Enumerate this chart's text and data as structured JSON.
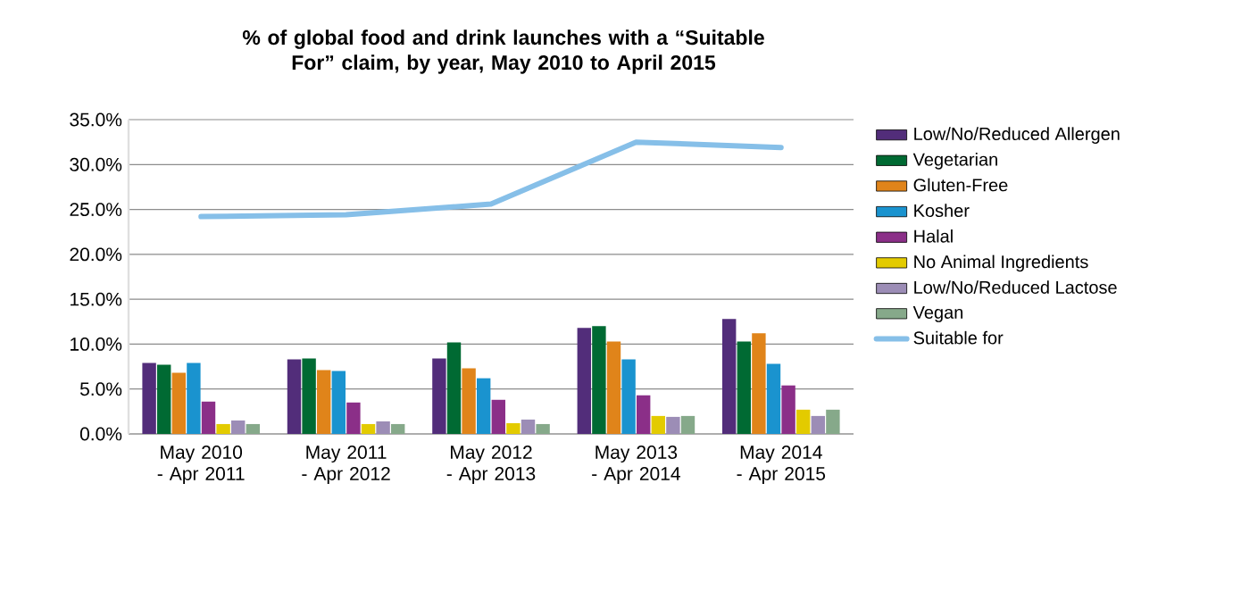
{
  "chart_data": {
    "type": "bar",
    "title": "% of global food and drink launches with a “Suitable For” claim, by year, May 2010 to April 2015",
    "categories": [
      "May 2010 - Apr 2011",
      "May 2011 - Apr 2012",
      "May 2012 - Apr 2013",
      "May 2013 - Apr 2014",
      "May 2014 - Apr 2015"
    ],
    "series": [
      {
        "name": "Low/No/Reduced Allergen",
        "color": "#522d7a",
        "values": [
          7.9,
          8.3,
          8.4,
          11.8,
          12.8
        ]
      },
      {
        "name": "Vegetarian",
        "color": "#006a33",
        "values": [
          7.7,
          8.4,
          10.2,
          12.0,
          10.3
        ]
      },
      {
        "name": "Gluten-Free",
        "color": "#e0841a",
        "values": [
          6.8,
          7.1,
          7.3,
          10.3,
          11.2
        ]
      },
      {
        "name": "Kosher",
        "color": "#1a93cf",
        "values": [
          7.9,
          7.0,
          6.2,
          8.3,
          7.8
        ]
      },
      {
        "name": "Halal",
        "color": "#8b2f88",
        "values": [
          3.6,
          3.5,
          3.8,
          4.3,
          5.4
        ]
      },
      {
        "name": "No Animal Ingredients",
        "color": "#e3cb00",
        "values": [
          1.1,
          1.1,
          1.2,
          2.0,
          2.7
        ]
      },
      {
        "name": "Low/No/Reduced Lactose",
        "color": "#9c8db6",
        "values": [
          1.5,
          1.4,
          1.6,
          1.9,
          2.0
        ]
      },
      {
        "name": "Vegan",
        "color": "#86a98a",
        "values": [
          1.1,
          1.1,
          1.1,
          2.0,
          2.7
        ]
      },
      {
        "name": "Suitable for",
        "color": "#86bfe8",
        "type": "line",
        "values": [
          24.2,
          24.4,
          25.6,
          32.5,
          31.9
        ]
      }
    ],
    "ylim": [
      0,
      35
    ],
    "yticks": [
      {
        "value": 0,
        "label": "0.0%"
      },
      {
        "value": 5,
        "label": "5.0%"
      },
      {
        "value": 10,
        "label": "10.0%"
      },
      {
        "value": 15,
        "label": "15.0%"
      },
      {
        "value": 20,
        "label": "20.0%"
      },
      {
        "value": 25,
        "label": "25.0%"
      },
      {
        "value": 30,
        "label": "30.0%"
      },
      {
        "value": 35,
        "label": "35.0%"
      }
    ],
    "grid": "y",
    "legend": "right"
  }
}
